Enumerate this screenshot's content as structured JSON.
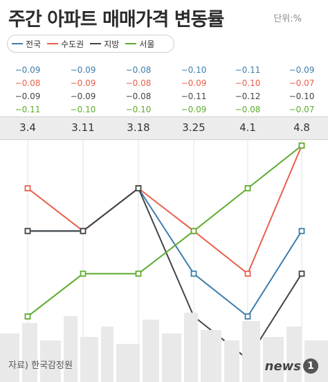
{
  "title": "주간 아파트 매매가격 변동률",
  "unit_label": "단위:%",
  "source": "자료) 한국감정원",
  "logo_text": "news",
  "logo_mark": "1",
  "chart_data": {
    "type": "line",
    "categories": [
      "3.4",
      "3.11",
      "3.18",
      "3.25",
      "4.1",
      "4.8"
    ],
    "series": [
      {
        "name": "전국",
        "color": "#3d7dab",
        "values": [
          -0.09,
          -0.09,
          -0.08,
          -0.1,
          -0.11,
          -0.09
        ],
        "labels": [
          "−0.09",
          "−0.09",
          "−0.08",
          "−0.10",
          "−0.11",
          "−0.09"
        ]
      },
      {
        "name": "수도권",
        "color": "#e8604c",
        "values": [
          -0.08,
          -0.09,
          -0.08,
          -0.09,
          -0.1,
          -0.07
        ],
        "labels": [
          "−0.08",
          "−0.09",
          "−0.08",
          "−0.09",
          "−0.10",
          "−0.07"
        ]
      },
      {
        "name": "지방",
        "color": "#444444",
        "values": [
          -0.09,
          -0.09,
          -0.08,
          -0.11,
          -0.12,
          -0.1
        ],
        "labels": [
          "−0.09",
          "−0.09",
          "−0.08",
          "−0.11",
          "−0.12",
          "−0.10"
        ]
      },
      {
        "name": "서울",
        "color": "#5cac2c",
        "values": [
          -0.11,
          -0.1,
          -0.1,
          -0.09,
          -0.08,
          -0.07
        ],
        "labels": [
          "−0.11",
          "−0.10",
          "−0.10",
          "−0.09",
          "−0.08",
          "−0.07"
        ]
      }
    ],
    "ylim": [
      -0.12,
      -0.07
    ],
    "grid": "vertical"
  }
}
